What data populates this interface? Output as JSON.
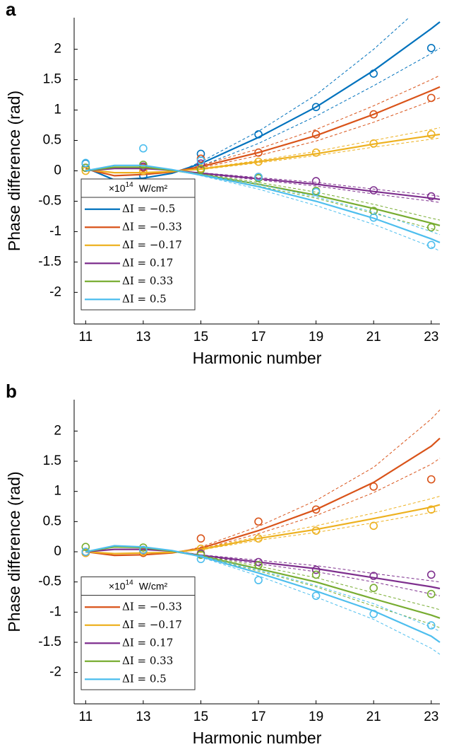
{
  "chart_data": [
    {
      "type": "scatter",
      "panel_label": "a",
      "xlabel": "Harmonic number",
      "ylabel": "Phase difference (rad)",
      "xlim": [
        10.6,
        23.3
      ],
      "ylim": [
        -2.52,
        2.52
      ],
      "xticks": [
        11,
        13,
        15,
        17,
        19,
        21,
        23
      ],
      "yticks": [
        2,
        1.5,
        1,
        0.5,
        0,
        -0.5,
        -1,
        -1.5,
        -2
      ],
      "legend": "lower left",
      "legend_title": {
        "base": "×10",
        "exponent": "14",
        "unit": "W/cm²"
      },
      "x": [
        11,
        13,
        15,
        17,
        19,
        21,
        23
      ],
      "fit_x": [
        11,
        12,
        13,
        14,
        15,
        17,
        19,
        21,
        23,
        23.3
      ],
      "band_x": [
        14.3,
        15,
        17,
        19,
        21,
        23,
        23.3
      ],
      "series": [
        {
          "name": "ΔI = −0.5",
          "color": "#0072BD",
          "values": [
            0.12,
            -0.08,
            0.28,
            0.6,
            1.05,
            1.6,
            2.02
          ],
          "fit": [
            0.05,
            -0.15,
            -0.12,
            -0.04,
            0.12,
            0.55,
            1.05,
            1.65,
            2.34,
            2.45
          ],
          "upper": [
            0,
            0.15,
            0.65,
            1.25,
            2.0,
            2.85,
            3.0
          ],
          "lower": [
            0,
            0.08,
            0.45,
            0.9,
            1.4,
            1.93,
            2.02
          ]
        },
        {
          "name": "ΔI = −0.33",
          "color": "#D95319",
          "values": [
            0.05,
            0.05,
            0.2,
            0.3,
            0.6,
            0.93,
            1.2
          ],
          "fit": [
            0.03,
            -0.08,
            -0.06,
            -0.02,
            0.07,
            0.3,
            0.58,
            0.93,
            1.32,
            1.38
          ],
          "upper": [
            0,
            0.09,
            0.36,
            0.68,
            1.07,
            1.5,
            1.57
          ],
          "lower": [
            0,
            0.05,
            0.25,
            0.49,
            0.8,
            1.15,
            1.2
          ]
        },
        {
          "name": "ΔI = −0.17",
          "color": "#EDB120",
          "values": [
            0.0,
            0.0,
            0.04,
            0.15,
            0.3,
            0.45,
            0.6
          ],
          "fit": [
            0.02,
            -0.03,
            -0.03,
            -0.01,
            0.03,
            0.15,
            0.28,
            0.44,
            0.58,
            0.6
          ],
          "upper": [
            0,
            0.04,
            0.17,
            0.32,
            0.5,
            0.68,
            0.71
          ],
          "lower": [
            0,
            0.02,
            0.13,
            0.25,
            0.39,
            0.52,
            0.54
          ]
        },
        {
          "name": "ΔI = 0.17",
          "color": "#7E2F8E",
          "values": [
            0.05,
            0.07,
            0.12,
            -0.1,
            -0.17,
            -0.32,
            -0.42
          ],
          "fit": [
            0.0,
            0.04,
            0.04,
            0.01,
            -0.04,
            -0.13,
            -0.22,
            -0.34,
            -0.45,
            -0.47
          ],
          "upper": [
            0,
            -0.03,
            -0.11,
            -0.19,
            -0.3,
            -0.4,
            -0.42
          ],
          "lower": [
            0,
            -0.05,
            -0.15,
            -0.25,
            -0.38,
            -0.5,
            -0.52
          ]
        },
        {
          "name": "ΔI = 0.33",
          "color": "#77AC30",
          "values": [
            0.05,
            0.1,
            0.02,
            -0.12,
            -0.33,
            -0.66,
            -0.93
          ],
          "fit": [
            0.0,
            0.06,
            0.06,
            0.01,
            -0.06,
            -0.22,
            -0.4,
            -0.62,
            -0.86,
            -0.9
          ],
          "upper": [
            0,
            -0.05,
            -0.19,
            -0.35,
            -0.55,
            -0.78,
            -0.81
          ],
          "lower": [
            0,
            -0.07,
            -0.25,
            -0.45,
            -0.7,
            -0.95,
            -0.99
          ]
        },
        {
          "name": "ΔI = 0.5",
          "color": "#4DBEEE",
          "values": [
            0.13,
            0.37,
            0.17,
            -0.1,
            -0.35,
            -0.77,
            -1.22
          ],
          "fit": [
            0.0,
            0.09,
            0.09,
            0.02,
            -0.07,
            -0.26,
            -0.5,
            -0.78,
            -1.12,
            -1.18
          ],
          "upper": [
            0,
            -0.06,
            -0.22,
            -0.43,
            -0.68,
            -1.0,
            -1.05
          ],
          "lower": [
            0,
            -0.08,
            -0.3,
            -0.57,
            -0.88,
            -1.25,
            -1.32
          ]
        }
      ]
    },
    {
      "type": "scatter",
      "panel_label": "b",
      "xlabel": "Harmonic number",
      "ylabel": "Phase difference (rad)",
      "xlim": [
        10.6,
        23.3
      ],
      "ylim": [
        -2.52,
        2.52
      ],
      "xticks": [
        11,
        13,
        15,
        17,
        19,
        21,
        23
      ],
      "yticks": [
        2,
        1.5,
        1,
        0.5,
        0,
        -0.5,
        -1,
        -1.5,
        -2
      ],
      "legend": "lower left",
      "legend_title": {
        "base": "×10",
        "exponent": "14",
        "unit": "W/cm²"
      },
      "x": [
        11,
        13,
        15,
        17,
        19,
        21,
        23
      ],
      "fit_x": [
        11,
        12,
        13,
        14,
        15,
        17,
        19,
        21,
        23,
        23.3
      ],
      "band_x": [
        14.3,
        15,
        17,
        19,
        21,
        23,
        23.3
      ],
      "series": [
        {
          "name": "ΔI = −0.33",
          "color": "#D95319",
          "values": [
            -0.02,
            -0.02,
            0.22,
            0.5,
            0.7,
            1.08,
            1.2
          ],
          "fit": [
            0.0,
            -0.06,
            -0.05,
            -0.02,
            0.06,
            0.35,
            0.7,
            1.15,
            1.75,
            1.88
          ],
          "upper": [
            0,
            0.08,
            0.42,
            0.85,
            1.4,
            2.2,
            2.35
          ],
          "lower": [
            0,
            0.04,
            0.3,
            0.6,
            0.98,
            1.45,
            1.55
          ]
        },
        {
          "name": "ΔI = −0.17",
          "color": "#EDB120",
          "values": [
            -0.02,
            0.0,
            0.05,
            0.22,
            0.35,
            0.43,
            0.7
          ],
          "fit": [
            0.0,
            -0.03,
            -0.02,
            -0.01,
            0.04,
            0.22,
            0.37,
            0.55,
            0.74,
            0.78
          ],
          "upper": [
            0,
            0.05,
            0.25,
            0.43,
            0.64,
            0.88,
            0.92
          ],
          "lower": [
            0,
            0.03,
            0.19,
            0.32,
            0.48,
            0.65,
            0.68
          ]
        },
        {
          "name": "ΔI = 0.17",
          "color": "#7E2F8E",
          "values": [
            0.0,
            0.03,
            -0.03,
            -0.17,
            -0.3,
            -0.4,
            -0.38
          ],
          "fit": [
            0.0,
            0.04,
            0.04,
            0.01,
            -0.06,
            -0.17,
            -0.28,
            -0.43,
            -0.58,
            -0.61
          ],
          "upper": [
            0,
            -0.05,
            -0.14,
            -0.23,
            -0.36,
            -0.48,
            -0.5
          ],
          "lower": [
            0,
            -0.07,
            -0.2,
            -0.33,
            -0.5,
            -0.7,
            -0.73
          ]
        },
        {
          "name": "ΔI = 0.33",
          "color": "#77AC30",
          "values": [
            0.08,
            0.07,
            -0.05,
            -0.22,
            -0.38,
            -0.6,
            -0.7
          ],
          "fit": [
            0.0,
            0.08,
            0.07,
            0.01,
            -0.07,
            -0.28,
            -0.5,
            -0.78,
            -1.05,
            -1.1
          ],
          "upper": [
            0,
            -0.06,
            -0.24,
            -0.43,
            -0.68,
            -0.92,
            -0.96
          ],
          "lower": [
            0,
            -0.08,
            -0.32,
            -0.58,
            -0.9,
            -1.2,
            -1.26
          ]
        },
        {
          "name": "ΔI = 0.5",
          "color": "#4DBEEE",
          "values": [
            0.0,
            0.03,
            -0.12,
            -0.47,
            -0.73,
            -1.03,
            -1.22
          ],
          "fit": [
            0.0,
            0.1,
            0.08,
            0.02,
            -0.08,
            -0.35,
            -0.65,
            -0.98,
            -1.4,
            -1.5
          ],
          "upper": [
            0,
            -0.07,
            -0.3,
            -0.56,
            -0.86,
            -1.25,
            -1.32
          ],
          "lower": [
            0,
            -0.09,
            -0.4,
            -0.75,
            -1.12,
            -1.6,
            -1.7
          ]
        }
      ]
    }
  ]
}
